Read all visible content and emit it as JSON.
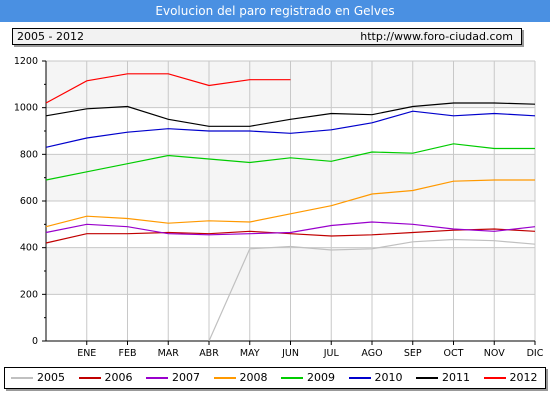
{
  "header": {
    "title": "Evolucion del paro registrado en Gelves",
    "period": "2005 - 2012",
    "source": "http://www.foro-ciudad.com"
  },
  "chart_data": {
    "type": "line",
    "title": "Evolucion del paro registrado en Gelves",
    "categories": [
      "DIC",
      "ENE",
      "FEB",
      "MAR",
      "ABR",
      "MAY",
      "JUN",
      "JUL",
      "AGO",
      "SEP",
      "OCT",
      "NOV",
      "DIC"
    ],
    "ylim": [
      0,
      1200
    ],
    "yticks": [
      0,
      200,
      400,
      600,
      800,
      1000,
      1200
    ],
    "grid": true,
    "legend_position": "bottom",
    "series": [
      {
        "name": "2005",
        "color": "#c0c0c0",
        "values": [
          null,
          null,
          null,
          null,
          0,
          395,
          405,
          390,
          395,
          425,
          435,
          430,
          415
        ]
      },
      {
        "name": "2006",
        "color": "#c00000",
        "values": [
          420,
          460,
          460,
          465,
          460,
          470,
          460,
          450,
          455,
          465,
          475,
          480,
          470
        ]
      },
      {
        "name": "2007",
        "color": "#9900cc",
        "values": [
          465,
          500,
          490,
          460,
          455,
          460,
          465,
          495,
          510,
          500,
          480,
          470,
          490
        ]
      },
      {
        "name": "2008",
        "color": "#ff9900",
        "values": [
          490,
          535,
          525,
          505,
          515,
          510,
          545,
          580,
          630,
          645,
          685,
          690,
          690
        ]
      },
      {
        "name": "2009",
        "color": "#00cc00",
        "values": [
          690,
          725,
          760,
          795,
          780,
          765,
          785,
          770,
          810,
          805,
          845,
          825,
          825
        ]
      },
      {
        "name": "2010",
        "color": "#0000cc",
        "values": [
          830,
          870,
          895,
          910,
          900,
          900,
          890,
          905,
          935,
          985,
          965,
          975,
          965
        ]
      },
      {
        "name": "2011",
        "color": "#000000",
        "values": [
          965,
          995,
          1005,
          950,
          920,
          920,
          950,
          975,
          970,
          1005,
          1020,
          1020,
          1015
        ]
      },
      {
        "name": "2012",
        "color": "#ff0000",
        "values": [
          1020,
          1115,
          1145,
          1145,
          1095,
          1120,
          1120,
          null,
          null,
          null,
          null,
          null,
          null
        ]
      }
    ]
  }
}
